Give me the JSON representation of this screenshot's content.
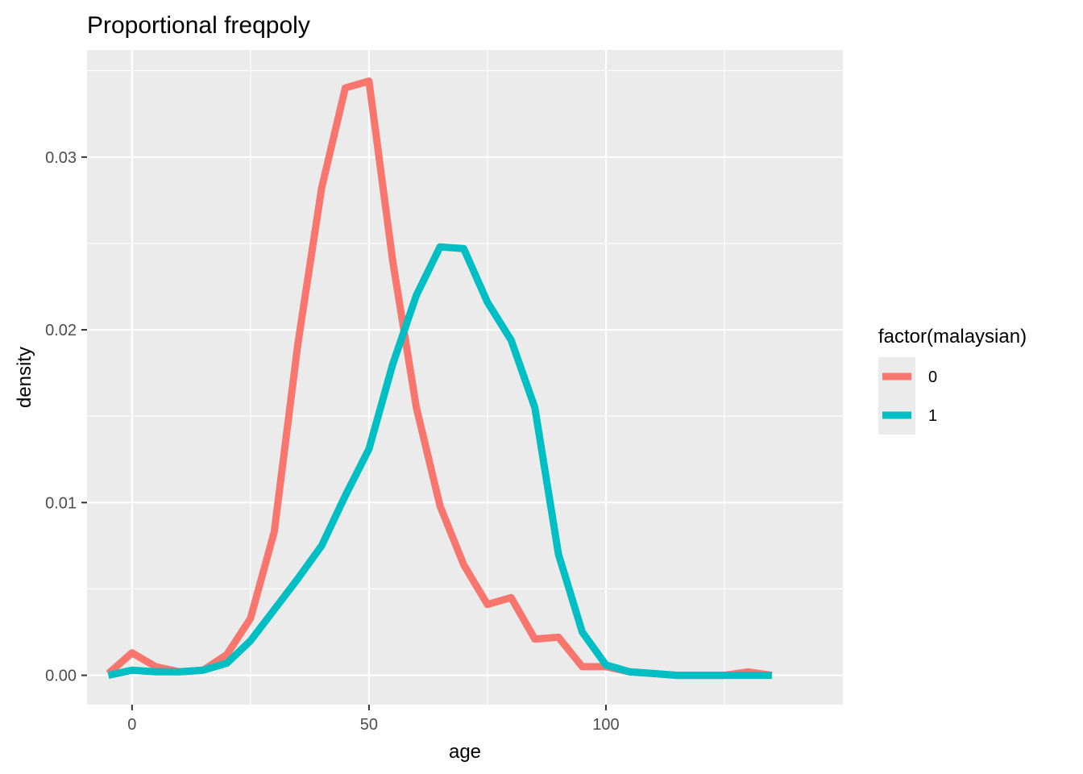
{
  "chart_data": {
    "type": "line",
    "title": "Proportional freqpoly",
    "xlabel": "age",
    "ylabel": "density",
    "xlim": [
      -9.5,
      150
    ],
    "ylim": [
      -0.0017,
      0.0362
    ],
    "x_ticks": [
      0,
      50,
      100
    ],
    "x_tick_labels": [
      "0",
      "50",
      "100"
    ],
    "y_ticks": [
      0,
      0.01,
      0.02,
      0.03
    ],
    "y_tick_labels": [
      "0.00",
      "0.01",
      "0.02",
      "0.03"
    ],
    "grid": true,
    "legend_title": "factor(malaysian)",
    "legend_position": "right",
    "series": [
      {
        "name": "0",
        "color": "#F8766D",
        "points": [
          [
            -5,
            0.0001
          ],
          [
            0,
            0.0013
          ],
          [
            5,
            0.0005
          ],
          [
            10,
            0.0002
          ],
          [
            15,
            0.0003
          ],
          [
            20,
            0.0012
          ],
          [
            25,
            0.0033
          ],
          [
            30,
            0.0083
          ],
          [
            35,
            0.0192
          ],
          [
            40,
            0.0282
          ],
          [
            45,
            0.034
          ],
          [
            50,
            0.0344
          ],
          [
            55,
            0.024
          ],
          [
            60,
            0.0155
          ],
          [
            65,
            0.0098
          ],
          [
            70,
            0.0064
          ],
          [
            75,
            0.0041
          ],
          [
            80,
            0.0045
          ],
          [
            85,
            0.0021
          ],
          [
            90,
            0.0022
          ],
          [
            95,
            0.0005
          ],
          [
            100,
            0.0005
          ],
          [
            105,
            0.0002
          ],
          [
            110,
            0.0001
          ],
          [
            115,
            0.0
          ],
          [
            120,
            0.0
          ],
          [
            125,
            0.0
          ],
          [
            130,
            0.0002
          ],
          [
            135,
            0.0
          ]
        ]
      },
      {
        "name": "1",
        "color": "#00BFC4",
        "points": [
          [
            -5,
            0.0
          ],
          [
            0,
            0.0003
          ],
          [
            5,
            0.0002
          ],
          [
            10,
            0.0002
          ],
          [
            15,
            0.0003
          ],
          [
            20,
            0.0007
          ],
          [
            25,
            0.002
          ],
          [
            30,
            0.0038
          ],
          [
            35,
            0.0056
          ],
          [
            40,
            0.0075
          ],
          [
            45,
            0.0104
          ],
          [
            50,
            0.0131
          ],
          [
            55,
            0.018
          ],
          [
            60,
            0.022
          ],
          [
            65,
            0.0248
          ],
          [
            70,
            0.0247
          ],
          [
            75,
            0.0216
          ],
          [
            80,
            0.0194
          ],
          [
            85,
            0.0155
          ],
          [
            90,
            0.007
          ],
          [
            95,
            0.0025
          ],
          [
            100,
            0.0006
          ],
          [
            105,
            0.0002
          ],
          [
            110,
            0.0001
          ],
          [
            115,
            0.0
          ],
          [
            120,
            0.0
          ],
          [
            125,
            0.0
          ],
          [
            130,
            0.0
          ],
          [
            135,
            0.0
          ]
        ]
      }
    ]
  }
}
